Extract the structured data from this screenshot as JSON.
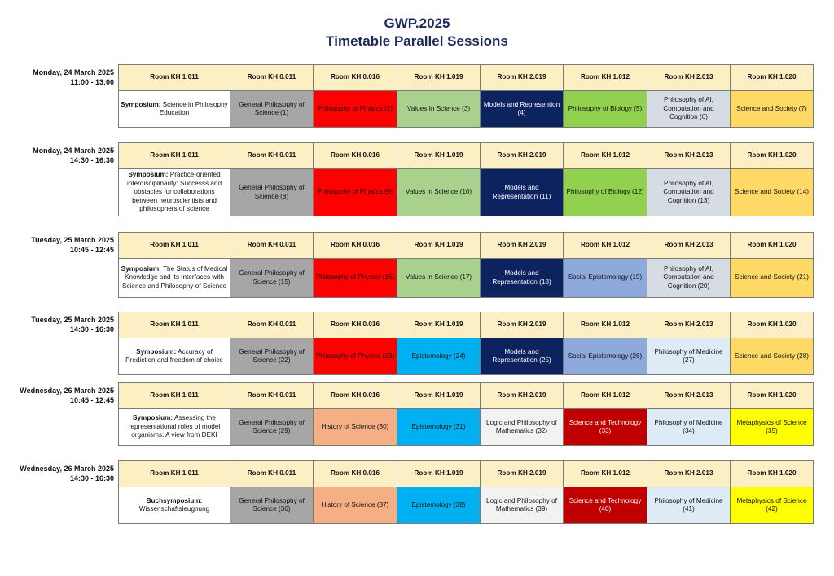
{
  "title": {
    "line1": "GWP.2025",
    "line2": "Timetable Parallel Sessions"
  },
  "rooms": [
    "Room KH 1.011",
    "Room KH 0.011",
    "Room KH 0.016",
    "Room KH 1.019",
    "Room KH 2.019",
    "Room KH 1.012",
    "Room KH 2.013",
    "Room KH 1.020"
  ],
  "colors": {
    "header": "#fdefc4",
    "general": "#a6a6a6",
    "physics": "#ff0000",
    "values": "#a9d18e",
    "models": "#0d2360",
    "biology": "#92d050",
    "ai": "#d6dce4",
    "society": "#ffd966",
    "social_epistemology": "#8ea9db",
    "epistemology": "#00b0f0",
    "medicine": "#ddebf7",
    "history": "#f4b084",
    "logic": "#f2f2f2",
    "technology": "#c00000",
    "metaphysics": "#ffff00"
  },
  "sessions": [
    {
      "day": "Monday, 24 March 2025",
      "time": "11:00 - 13:00",
      "cells": [
        {
          "bold": "Symposium:",
          "text": " Science in Philosophy Education"
        },
        {
          "text": "General Philosophy of Science (1)"
        },
        {
          "text": "Philosophy of Physics (2)"
        },
        {
          "text": "Values In Science (3)"
        },
        {
          "text": "Models and Represention (4)"
        },
        {
          "text": "Philosophy of Biology (5)"
        },
        {
          "text": "Philosophy of AI, Computation and Cognition (6)"
        },
        {
          "text": "Science and Society (7)"
        }
      ]
    },
    {
      "day": "Monday, 24 March 2025",
      "time": "14:30 - 16:30",
      "cells": [
        {
          "bold": "Symposium:",
          "text": " Practice-oriented interdisciplinarity: Successs and obstacles for collaborations between neuroscientists and philosophers of science"
        },
        {
          "text": "General Philosophy of Science (8)"
        },
        {
          "text": "Philosophy of Physics (9)"
        },
        {
          "text": "Values in Science (10)"
        },
        {
          "text": "Models and Representation (11)"
        },
        {
          "text": "Philosophy of Biology (12)"
        },
        {
          "text": "Philosophy of AI, Computation and Cognition (13)"
        },
        {
          "text": "Science and Society (14)"
        }
      ]
    },
    {
      "day": "Tuesday, 25 March 2025",
      "time": "10:45 - 12:45",
      "cells": [
        {
          "bold": "Symposium:",
          "text": " The Status of Medical Knowledge and its Interfaces with Science and Philosophy of Science"
        },
        {
          "text": "General Philosophy of Science (15)"
        },
        {
          "text": "Philosophy of Physics (16)"
        },
        {
          "text": "Values in Science (17)"
        },
        {
          "text": "Models and Representation (18)"
        },
        {
          "text": "Social Epistemology (19)"
        },
        {
          "text": "Philosophy of AI, Computation and Cognition (20)"
        },
        {
          "text": "Science and Society (21)"
        }
      ]
    },
    {
      "day": "Tuesday, 25 March 2025",
      "time": "14:30 - 16:30",
      "cells": [
        {
          "bold": "Symposium:",
          "text": " Accuracy of Prediction and freedom of choice"
        },
        {
          "text": "General Philosophy of Science (22)"
        },
        {
          "text": "Philosophy of Physics (23)"
        },
        {
          "text": "Epistemology (24)"
        },
        {
          "text": "Models and Representation (25)"
        },
        {
          "text": "Social Epistemology (26)"
        },
        {
          "text": "Philosophy of Medicine (27)"
        },
        {
          "text": "Science and Society (28)"
        }
      ]
    },
    {
      "day": "Wednesday, 26 March 2025",
      "time": "10:45 - 12:45",
      "cells": [
        {
          "bold": "Symposium:",
          "text": " Assessing the representational roles of model organisms: A view from DEKI"
        },
        {
          "text": "General Philosophy of Science (29)"
        },
        {
          "text": "History of Science (30)"
        },
        {
          "text": "Epistemology (31)"
        },
        {
          "text": "Logic and Philosophy of Mathematics (32)"
        },
        {
          "text": "Science and Technology (33)"
        },
        {
          "text": "Philosophy of Medicine (34)"
        },
        {
          "text": "Metaphysics of Science (35)"
        }
      ]
    },
    {
      "day": "Wednesday, 26 March 2025",
      "time": "14:30 - 16:30",
      "cells": [
        {
          "bold": "Buchsymposium:",
          "text": " Wissenschaftsleugnung"
        },
        {
          "text": "General Philosophy of Science (36)"
        },
        {
          "text": "History of Science (37)"
        },
        {
          "text": "Epistemology (38)"
        },
        {
          "text": "Logic and Philosophy of Mathematics (39)"
        },
        {
          "text": "Science and Technology (40)"
        },
        {
          "text": "Philosophy of Medicine (41)"
        },
        {
          "text": "Metaphysics of Science (42)"
        }
      ]
    }
  ]
}
